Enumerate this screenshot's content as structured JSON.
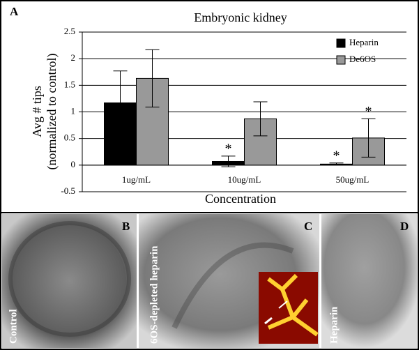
{
  "chart_data": {
    "type": "bar",
    "panel_label": "A",
    "title": "Embryonic kidney",
    "ylabel": [
      "Avg # tips",
      "(normalized to control)"
    ],
    "xlabel": "Concentration",
    "categories": [
      "1ug/mL",
      "10ug/mL",
      "50ug/mL"
    ],
    "series": [
      {
        "name": "Heparin",
        "color": "#000000",
        "values": [
          1.17,
          0.07,
          0.02
        ],
        "errors": [
          0.6,
          0.1,
          0.02
        ],
        "significant": [
          false,
          true,
          true
        ]
      },
      {
        "name": "De6OS",
        "color": "#999999",
        "values": [
          1.63,
          0.87,
          0.51
        ],
        "errors": [
          0.54,
          0.32,
          0.36
        ],
        "significant": [
          false,
          false,
          true
        ]
      }
    ],
    "significance_label": "*",
    "ylim": [
      -0.5,
      2.5
    ],
    "yticks": [
      -0.5,
      0,
      0.5,
      1,
      1.5,
      2,
      2.5
    ],
    "grid": true,
    "legend": "top-right"
  },
  "panels": [
    {
      "label": "B",
      "caption": "Control"
    },
    {
      "label": "C",
      "caption": "6OS-depleted heparin"
    },
    {
      "label": "D",
      "caption": "Heparin"
    }
  ]
}
